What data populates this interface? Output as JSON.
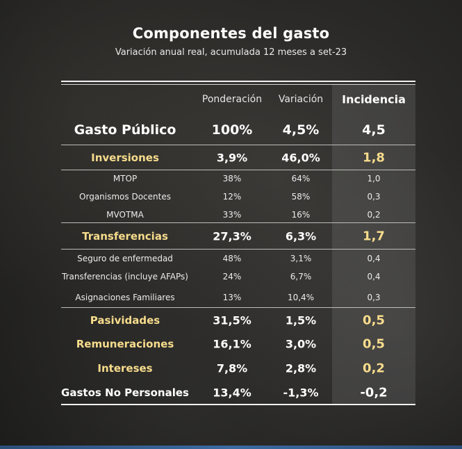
{
  "title": "Componentes del gasto",
  "subtitle": "Variación anual real, acumulada 12 meses a set-23",
  "colors": {
    "highlight": "#f7dc8c",
    "text": "#ffffff",
    "background": "#2a2927"
  },
  "chart_data": {
    "type": "table",
    "columns": [
      "",
      "Ponderación",
      "Variación",
      "Incidencia"
    ],
    "rows": [
      {
        "label": "Gasto Público",
        "ponderacion": "100%",
        "variacion": "4,5%",
        "incidencia": "4,5",
        "level": "total"
      },
      {
        "label": "Inversiones",
        "ponderacion": "3,9%",
        "variacion": "46,0%",
        "incidencia": "1,8",
        "level": "main",
        "color": "gold"
      },
      {
        "label": "MTOP",
        "ponderacion": "38%",
        "variacion": "64%",
        "incidencia": "1,0",
        "level": "sub"
      },
      {
        "label": "Organismos Docentes",
        "ponderacion": "12%",
        "variacion": "58%",
        "incidencia": "0,3",
        "level": "sub"
      },
      {
        "label": "MVOTMA",
        "ponderacion": "33%",
        "variacion": "16%",
        "incidencia": "0,2",
        "level": "sub"
      },
      {
        "label": "Transferencias",
        "ponderacion": "27,3%",
        "variacion": "6,3%",
        "incidencia": "1,7",
        "level": "main",
        "color": "gold"
      },
      {
        "label": "Seguro de enfermedad",
        "ponderacion": "48%",
        "variacion": "3,1%",
        "incidencia": "0,4",
        "level": "sub"
      },
      {
        "label": "Transferencias (incluye AFAPs)",
        "ponderacion": "24%",
        "variacion": "6,7%",
        "incidencia": "0,4",
        "level": "sub"
      },
      {
        "label": "Asignaciones Familiares",
        "ponderacion": "13%",
        "variacion": "10,4%",
        "incidencia": "0,3",
        "level": "sub"
      },
      {
        "label": "Pasividades",
        "ponderacion": "31,5%",
        "variacion": "1,5%",
        "incidencia": "0,5",
        "level": "main",
        "color": "gold"
      },
      {
        "label": "Remuneraciones",
        "ponderacion": "16,1%",
        "variacion": "3,0%",
        "incidencia": "0,5",
        "level": "main",
        "color": "gold"
      },
      {
        "label": "Intereses",
        "ponderacion": "7,8%",
        "variacion": "2,8%",
        "incidencia": "0,2",
        "level": "main",
        "color": "gold"
      },
      {
        "label": "Gastos No Personales",
        "ponderacion": "13,4%",
        "variacion": "-1,3%",
        "incidencia": "-0,2",
        "level": "main",
        "color": "white"
      }
    ]
  }
}
